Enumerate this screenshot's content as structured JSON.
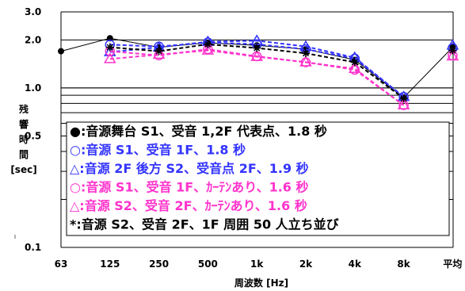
{
  "chart_data": {
    "type": "line",
    "title": "",
    "xlabel": "周波数 [Hz]",
    "ylabel_chars": [
      "残",
      "響",
      "時",
      "間"
    ],
    "ylabel_unit": "[sec]",
    "yscale": "log",
    "ylim": [
      0.1,
      3.0
    ],
    "yticks": [
      {
        "value": 0.1,
        "label": "0.1"
      },
      {
        "value": 0.5,
        "label": "0.5"
      },
      {
        "value": 1.0,
        "label": "1.0"
      },
      {
        "value": 2.0,
        "label": "2.0"
      },
      {
        "value": 3.0,
        "label": "3.0"
      }
    ],
    "categories": [
      "63",
      "125",
      "250",
      "500",
      "1k",
      "2k",
      "4k",
      "8k",
      "平均"
    ],
    "grid": true,
    "legend_position": "bottom-inside",
    "series": [
      {
        "name": "●:音源舞台 S1、受音 1,2F 代表点、1.8 秒",
        "color": "#000000",
        "marker": "filled-circle",
        "line": "solid",
        "values": [
          1.7,
          2.05,
          1.8,
          1.92,
          1.85,
          1.75,
          1.5,
          0.87,
          1.8
        ]
      },
      {
        "name": "○:音源 S1、受音 1F、1.8 秒",
        "color": "#3333ff",
        "marker": "open-circle",
        "line": "dashed",
        "values": [
          null,
          1.87,
          1.82,
          1.93,
          1.88,
          1.75,
          1.53,
          0.88,
          1.78
        ]
      },
      {
        "name": "△:音源 2F 後方 S2、受音点 2F、1.9 秒",
        "color": "#3333ff",
        "marker": "open-triangle",
        "line": "dashed",
        "values": [
          null,
          1.68,
          1.8,
          1.95,
          1.98,
          1.82,
          1.55,
          0.88,
          1.85
        ]
      },
      {
        "name": "○:音源 S1、受音 1F、ｶｰﾃﾝあり、1.6 秒",
        "color": "#ff33cc",
        "marker": "open-circle",
        "line": "dashed",
        "values": [
          null,
          1.7,
          1.6,
          1.75,
          1.58,
          1.45,
          1.3,
          0.78,
          1.6
        ]
      },
      {
        "name": "△:音源 S2、受音 2F、ｶｰﾃﾝあり、1.6 秒",
        "color": "#ff33cc",
        "marker": "open-triangle",
        "line": "dashed",
        "values": [
          null,
          1.52,
          1.62,
          1.72,
          1.57,
          1.45,
          1.32,
          0.78,
          1.58
        ]
      },
      {
        "name": "*:音源 S2、受音 2F、1F 周囲 50 人立ち並び",
        "color": "#000000",
        "marker": "asterisk",
        "line": "dashed",
        "values": [
          null,
          1.8,
          1.7,
          1.88,
          1.78,
          1.65,
          1.45,
          0.86,
          1.72
        ]
      }
    ]
  }
}
